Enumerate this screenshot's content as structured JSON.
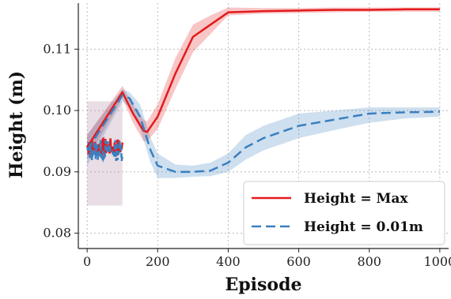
{
  "chart_data": {
    "type": "line",
    "title": "",
    "xlabel": "Episode",
    "ylabel": "Height (m)",
    "xlim": [
      -25,
      1025
    ],
    "ylim": [
      0.0775,
      0.1175
    ],
    "xticks": [
      0,
      200,
      400,
      600,
      800,
      1000
    ],
    "yticks": [
      0.08,
      0.09,
      0.1,
      0.11
    ],
    "xtick_labels": [
      "0",
      "200",
      "400",
      "600",
      "800",
      "1000"
    ],
    "ytick_labels": [
      "0.08",
      "0.09",
      "0.10",
      "0.11"
    ],
    "grid": true,
    "legend_position": "lower-right",
    "series": [
      {
        "name": "Height = Max",
        "color": "#e31a1c",
        "linestyle": "solid",
        "x": [
          0,
          100,
          130,
          160,
          170,
          200,
          250,
          300,
          350,
          400,
          500,
          600,
          700,
          800,
          900,
          1000
        ],
        "y": [
          0.094,
          0.103,
          0.0995,
          0.0967,
          0.0965,
          0.099,
          0.106,
          0.112,
          0.114,
          0.116,
          0.1162,
          0.1163,
          0.1164,
          0.1164,
          0.1165,
          0.1165
        ],
        "lower": [
          0.092,
          0.102,
          0.098,
          0.095,
          0.095,
          0.097,
          0.1035,
          0.1095,
          0.1125,
          0.1155,
          0.1158,
          0.1159,
          0.116,
          0.1161,
          0.1161,
          0.1161
        ],
        "upper": [
          0.096,
          0.104,
          0.101,
          0.0985,
          0.0982,
          0.101,
          0.1085,
          0.114,
          0.1155,
          0.1168,
          0.1167,
          0.1167,
          0.1168,
          0.1168,
          0.1168,
          0.1168
        ]
      },
      {
        "name": "Height = 0.01m",
        "color": "#3a7fc0",
        "linestyle": "dashed",
        "x": [
          0,
          100,
          120,
          150,
          180,
          200,
          250,
          300,
          350,
          400,
          450,
          500,
          550,
          600,
          700,
          800,
          900,
          1000
        ],
        "y": [
          0.0935,
          0.1025,
          0.102,
          0.099,
          0.0935,
          0.091,
          0.09,
          0.09,
          0.0902,
          0.0915,
          0.094,
          0.0955,
          0.0965,
          0.0975,
          0.0985,
          0.0995,
          0.0997,
          0.0998
        ],
        "lower": [
          0.091,
          0.1015,
          0.1005,
          0.097,
          0.0915,
          0.089,
          0.089,
          0.0892,
          0.0893,
          0.09,
          0.092,
          0.0935,
          0.0945,
          0.0955,
          0.0968,
          0.098,
          0.0987,
          0.099
        ],
        "upper": [
          0.096,
          0.1035,
          0.103,
          0.101,
          0.0955,
          0.093,
          0.0912,
          0.091,
          0.0915,
          0.093,
          0.096,
          0.0975,
          0.0985,
          0.0995,
          0.1,
          0.1005,
          0.1005,
          0.1005
        ]
      }
    ]
  }
}
